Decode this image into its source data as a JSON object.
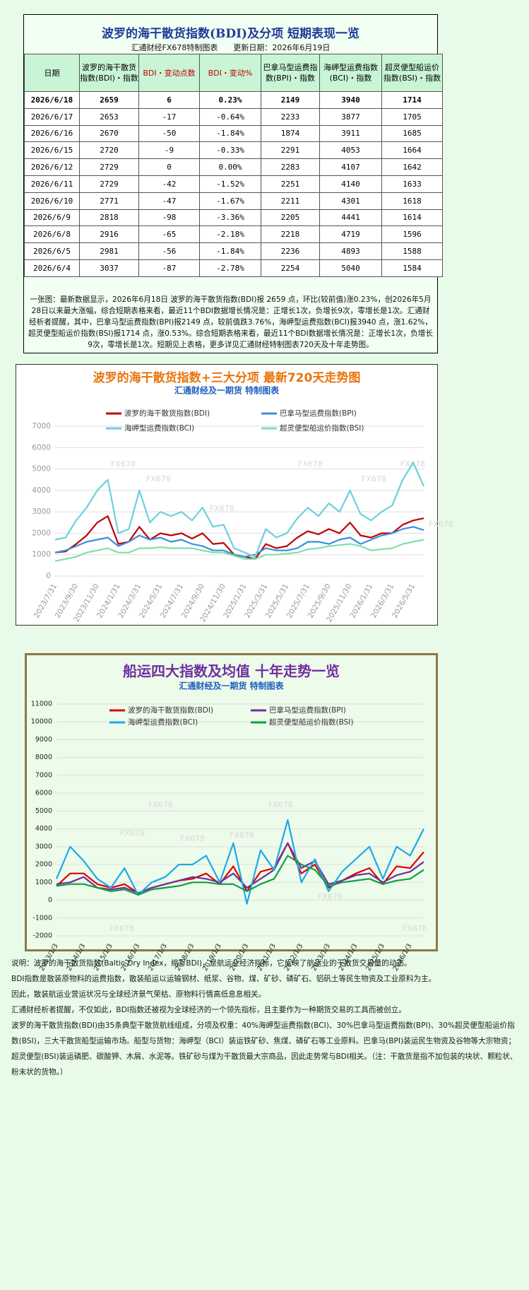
{
  "header": {
    "title": "波罗的海干散货指数(BDI)及分项 短期表现一览",
    "subtitle": "汇通财经FX678特制图表　　更新日期：2026年6月19日"
  },
  "table": {
    "columns": [
      "日期",
      "波罗的海干散货指数(BDI)・指数",
      "BDI・变动点数",
      "BDI・变动%",
      "巴拿马型运费指数(BPI)・指数",
      "海岬型运费指数(BCI)・指数",
      "超灵便型船运价指数(BSI)・指数"
    ],
    "rows": [
      [
        "2026/6/18",
        "2659",
        "6",
        "0.23%",
        "2149",
        "3940",
        "1714"
      ],
      [
        "2026/6/17",
        "2653",
        "-17",
        "-0.64%",
        "2233",
        "3877",
        "1705"
      ],
      [
        "2026/6/16",
        "2670",
        "-50",
        "-1.84%",
        "1874",
        "3911",
        "1685"
      ],
      [
        "2026/6/15",
        "2720",
        "-9",
        "-0.33%",
        "2291",
        "4053",
        "1664"
      ],
      [
        "2026/6/12",
        "2729",
        "0",
        "0.00%",
        "2283",
        "4107",
        "1642"
      ],
      [
        "2026/6/11",
        "2729",
        "-42",
        "-1.52%",
        "2251",
        "4140",
        "1633"
      ],
      [
        "2026/6/10",
        "2771",
        "-47",
        "-1.67%",
        "2211",
        "4301",
        "1618"
      ],
      [
        "2026/6/9",
        "2818",
        "-98",
        "-3.36%",
        "2205",
        "4441",
        "1614"
      ],
      [
        "2026/6/8",
        "2916",
        "-65",
        "-2.18%",
        "2218",
        "4719",
        "1596"
      ],
      [
        "2026/6/5",
        "2981",
        "-56",
        "-1.84%",
        "2236",
        "4893",
        "1588"
      ],
      [
        "2026/6/4",
        "3037",
        "-87",
        "-2.78%",
        "2254",
        "5040",
        "1584"
      ]
    ]
  },
  "summary": "一张图：最新数据显示，2026年6月18日 波罗的海干散货指数(BDI)报 2659 点，环比(较前值)涨0.23%，创2026年5月28日以来最大涨幅，综合短期表格来看，最近11个BDI数据增长情况是：正增长1次，负增长9次，零增长是1次。汇通财经析者提醒，其中，巴拿马型运费指数(BPI)报2149 点，较前值跌3.76%，海岬型运费指数(BCI)报3940 点，涨1.62%，超灵便型船运价指数(BSI)报1714 点，涨0.53%。综合短期表格来看，最近11个BDI数据增长情况是：正增长1次，负增长9次，零增长是1次。短期见上表格，更多详见汇通财经特制图表720天及十年走势图。",
  "chart_data": [
    {
      "type": "line",
      "title": "波罗的海干散货指数+三大分项  最新720天走势图",
      "subtitle": "汇通财经及一期货  特制图表",
      "watermark": "FX678",
      "categories": [
        "2023/7/31",
        null,
        "2023/9/30",
        null,
        "2023/11/30",
        null,
        "2024/1/31",
        null,
        "2024/3/31",
        null,
        "2024/5/31",
        null,
        "2024/7/31",
        null,
        "2024/9/30",
        null,
        "2024/11/30",
        null,
        "2025/1/31",
        null,
        "2025/3/31",
        null,
        "2025/5/31",
        null,
        "2025/7/31",
        null,
        "2025/9/30",
        null,
        "2025/11/30",
        null,
        "2026/1/31",
        null,
        "2026/3/31",
        null,
        "2026/5/31",
        null
      ],
      "ylim": [
        0,
        7000
      ],
      "yticks": [
        0,
        1000,
        2000,
        3000,
        4000,
        5000,
        6000,
        7000
      ],
      "grid": true,
      "series": [
        {
          "name": "波罗的海干散货指数(BDI)",
          "color": "#c00000",
          "values": [
            1100,
            1150,
            1500,
            1900,
            2500,
            2800,
            1500,
            1600,
            2300,
            1700,
            2000,
            1900,
            2000,
            1750,
            2000,
            1500,
            1550,
            1000,
            900,
            800,
            1500,
            1300,
            1400,
            1800,
            2100,
            1950,
            2200,
            2000,
            2500,
            1900,
            1800,
            2000,
            2000,
            2400,
            2600,
            2700
          ]
        },
        {
          "name": "巴拿马型运费指数(BPI)",
          "color": "#3a8fdc",
          "values": [
            1100,
            1200,
            1400,
            1600,
            1700,
            1800,
            1400,
            1600,
            1900,
            1700,
            1800,
            1600,
            1700,
            1500,
            1400,
            1200,
            1200,
            1000,
            900,
            1000,
            1300,
            1200,
            1200,
            1300,
            1600,
            1600,
            1500,
            1700,
            1800,
            1500,
            1700,
            1900,
            2000,
            2200,
            2300,
            2150
          ]
        },
        {
          "name": "海岬型运费指数(BCI)",
          "color": "#6dcfdf",
          "values": [
            1700,
            1800,
            2600,
            3200,
            4000,
            4500,
            2000,
            2200,
            4000,
            2500,
            3000,
            2800,
            3000,
            2600,
            3200,
            2300,
            2400,
            1300,
            1100,
            900,
            2200,
            1800,
            2000,
            2700,
            3200,
            2800,
            3400,
            3000,
            4000,
            2900,
            2600,
            3000,
            3300,
            4500,
            5300,
            4200
          ]
        },
        {
          "name": "超灵便型船运价指数(BSI)",
          "color": "#7fe0a8",
          "values": [
            700,
            800,
            900,
            1100,
            1200,
            1300,
            1100,
            1100,
            1300,
            1300,
            1350,
            1300,
            1300,
            1300,
            1200,
            1100,
            1100,
            950,
            800,
            800,
            1000,
            1000,
            1050,
            1100,
            1250,
            1300,
            1400,
            1450,
            1500,
            1400,
            1200,
            1250,
            1300,
            1500,
            1600,
            1700
          ]
        }
      ]
    },
    {
      "type": "line",
      "title": "船运四大指数及均值 十年走势一览",
      "subtitle": "汇通财经及一期货 特制图表",
      "watermark": "FX678",
      "categories": [
        "2013/1/3",
        null,
        "2014/1/3",
        null,
        "2015/1/3",
        null,
        "2016/1/3",
        null,
        "2017/1/3",
        null,
        "2018/1/3",
        null,
        "2019/1/3",
        null,
        "2020/1/3",
        null,
        "2021/1/3",
        null,
        "2022/1/3",
        null,
        "2023/1/3",
        null,
        "2024/1/3",
        null,
        "2025/1/3",
        null,
        "2026/1/3",
        null
      ],
      "ylim": [
        -2000,
        11000
      ],
      "yticks": [
        -2000,
        -1000,
        0,
        1000,
        2000,
        3000,
        4000,
        5000,
        6000,
        7000,
        8000,
        9000,
        10000,
        11000
      ],
      "grid": true,
      "series": [
        {
          "name": "波罗的海干散货指数(BDI)",
          "color": "#e00000",
          "values": [
            800,
            1500,
            1500,
            900,
            700,
            900,
            400,
            700,
            900,
            1100,
            1200,
            1500,
            900,
            1900,
            500,
            1600,
            1800,
            3200,
            1500,
            2000,
            700,
            1100,
            1500,
            1800,
            900,
            1900,
            1800,
            2700
          ]
        },
        {
          "name": "巴拿马型运费指数(BPI)",
          "color": "#7030a0",
          "values": [
            900,
            1000,
            1300,
            700,
            600,
            700,
            400,
            700,
            900,
            1100,
            1300,
            1200,
            1000,
            1500,
            700,
            1200,
            1700,
            3200,
            1800,
            2200,
            900,
            1100,
            1400,
            1500,
            1000,
            1400,
            1600,
            2150
          ]
        },
        {
          "name": "海岬型运费指数(BCI)",
          "color": "#1ea8e8",
          "values": [
            1200,
            3000,
            2200,
            1200,
            700,
            1800,
            300,
            1000,
            1300,
            2000,
            2000,
            2500,
            1000,
            3200,
            -200,
            2800,
            1700,
            4500,
            1000,
            2300,
            500,
            1600,
            2300,
            3000,
            1200,
            3000,
            2500,
            4000
          ]
        },
        {
          "name": "超灵便型船运价指数(BSI)",
          "color": "#10a040",
          "values": [
            800,
            900,
            900,
            700,
            500,
            600,
            300,
            600,
            700,
            800,
            1000,
            1000,
            900,
            900,
            500,
            900,
            1200,
            2500,
            2000,
            1700,
            800,
            1000,
            1100,
            1200,
            900,
            1100,
            1200,
            1700
          ]
        }
      ]
    }
  ],
  "notes": [
    "说明：波罗的海干散货指数(Baltic Dry Index，缩写BDI)，是航运业经济指标，它反映了航运业的干散货交易量的动态。",
    "BDI指数是散装原物料的运费指数，散装船运以运输钢材、纸浆、谷物、煤、矿砂、磷矿石、铝矾土等民生物资及工业原料为主。",
    "因此，散装航运业营运状况与全球经济景气荣枯、原物料行情高低息息相关。",
    "汇通财经析者提醒，不仅如此，BDI指数还被视为全球经济的一个领先指标，且主要作为一种期货交易的工具而被创立。",
    "波罗的海干散货指数(BDI)由35条典型干散货航线组成，分项及权重：40%海岬型运费指数(BCI)、30%巴拿马型运费指数(BPI)、30%超灵便型船运价指数(BSI)，三大干散货船型运输市场。船型与货物：海岬型（BCI）装运铁矿砂、焦煤、磷矿石等工业原料。巴拿马(BPI)装运民生物资及谷物等大宗物资；超灵便型(BSI)装运磷肥、碳酸钾、木屑、水泥等。铁矿砂与煤为干散货最大宗商品，因此走势常与BDI相关。（注：干散货是指不加包装的块状、颗粒状、粉末状的货物。）"
  ]
}
